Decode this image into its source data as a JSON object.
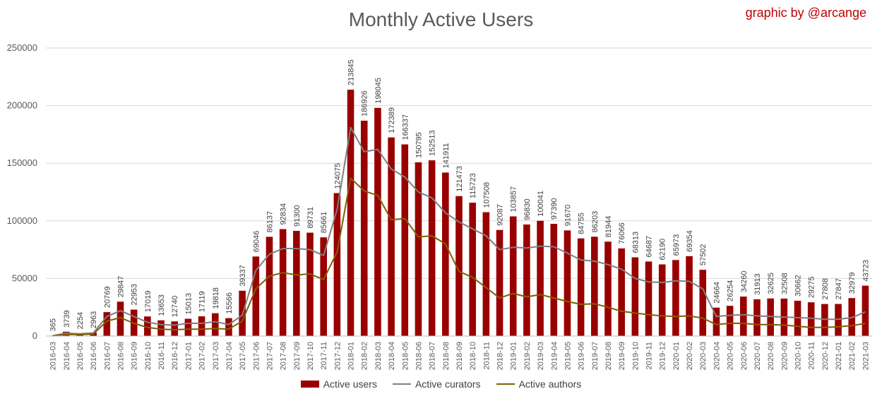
{
  "title": "Monthly Active Users",
  "credit": "graphic by @arcange",
  "colors": {
    "bars": "#990000",
    "curators": "#7f7f7f",
    "authors": "#7f6000",
    "grid": "#d9d9d9",
    "axis_text": "#595959"
  },
  "chart_data": {
    "type": "bar",
    "title": "Monthly Active Users",
    "ylim": [
      0,
      250000
    ],
    "yticks": [
      0,
      50000,
      100000,
      150000,
      200000,
      250000
    ],
    "grid": true,
    "legend_position": "bottom",
    "categories": [
      "2016-03",
      "2016-04",
      "2016-05",
      "2016-06",
      "2016-07",
      "2016-08",
      "2016-09",
      "2016-10",
      "2016-11",
      "2016-12",
      "2017-01",
      "2017-02",
      "2017-03",
      "2017-04",
      "2017-05",
      "2017-06",
      "2017-07",
      "2017-08",
      "2017-09",
      "2017-10",
      "2017-11",
      "2017-12",
      "2018-01",
      "2018-02",
      "2018-03",
      "2018-04",
      "2018-05",
      "2018-06",
      "2018-07",
      "2018-08",
      "2018-09",
      "2018-10",
      "2018-11",
      "2018-12",
      "2019-01",
      "2019-02",
      "2019-03",
      "2019-04",
      "2019-05",
      "2019-06",
      "2019-07",
      "2019-08",
      "2019-09",
      "2019-10",
      "2019-11",
      "2019-12",
      "2020-01",
      "2020-02",
      "2020-03",
      "2020-04",
      "2020-05",
      "2020-06",
      "2020-07",
      "2020-08",
      "2020-09",
      "2020-10",
      "2020-11",
      "2020-12",
      "2021-01",
      "2021-02",
      "2021-03"
    ],
    "series": [
      {
        "name": "Active users",
        "type": "bar",
        "values": [
          365,
          3739,
          2254,
          2963,
          20769,
          29847,
          22953,
          17019,
          13653,
          12740,
          15013,
          17119,
          19818,
          15566,
          39337,
          69046,
          86137,
          92834,
          91300,
          89731,
          85661,
          124075,
          213845,
          186926,
          198045,
          172389,
          166337,
          150795,
          152513,
          141911,
          121473,
          115723,
          107508,
          92087,
          103857,
          96830,
          100041,
          97390,
          91670,
          84755,
          86203,
          81944,
          76066,
          68313,
          64687,
          62190,
          65973,
          69354,
          57502,
          24664,
          26254,
          34260,
          31913,
          32625,
          32508,
          30662,
          29275,
          27808,
          27847,
          32979,
          43723
        ]
      },
      {
        "name": "Active curators",
        "type": "line",
        "values": [
          300,
          2500,
          2000,
          2700,
          17000,
          22000,
          17000,
          12000,
          10000,
          9500,
          11000,
          11000,
          12500,
          10000,
          18000,
          57000,
          71000,
          76000,
          76000,
          75000,
          70000,
          110000,
          181000,
          160000,
          162000,
          145000,
          138000,
          125000,
          120000,
          107000,
          99000,
          93000,
          87000,
          75000,
          77000,
          76500,
          78000,
          77500,
          72000,
          66000,
          65000,
          62000,
          58000,
          50000,
          47000,
          46500,
          48000,
          47500,
          41000,
          17000,
          18000,
          18500,
          17500,
          17000,
          16500,
          16000,
          15500,
          14500,
          14500,
          16000,
          21000
        ]
      },
      {
        "name": "Active authors",
        "type": "line",
        "values": [
          200,
          1500,
          1300,
          1700,
          13000,
          16000,
          11000,
          7500,
          6000,
          5500,
          6000,
          6000,
          6500,
          6000,
          13000,
          41000,
          52000,
          55000,
          53000,
          54000,
          49000,
          73000,
          137000,
          126000,
          122000,
          101000,
          102000,
          86000,
          87000,
          80000,
          56000,
          51000,
          42000,
          33000,
          37000,
          34000,
          36000,
          33000,
          30000,
          27500,
          28000,
          25000,
          21500,
          20000,
          18500,
          17500,
          17000,
          17500,
          15500,
          10000,
          11000,
          11000,
          10000,
          10000,
          9500,
          8500,
          7500,
          7500,
          8000,
          9000,
          11000
        ]
      }
    ]
  }
}
